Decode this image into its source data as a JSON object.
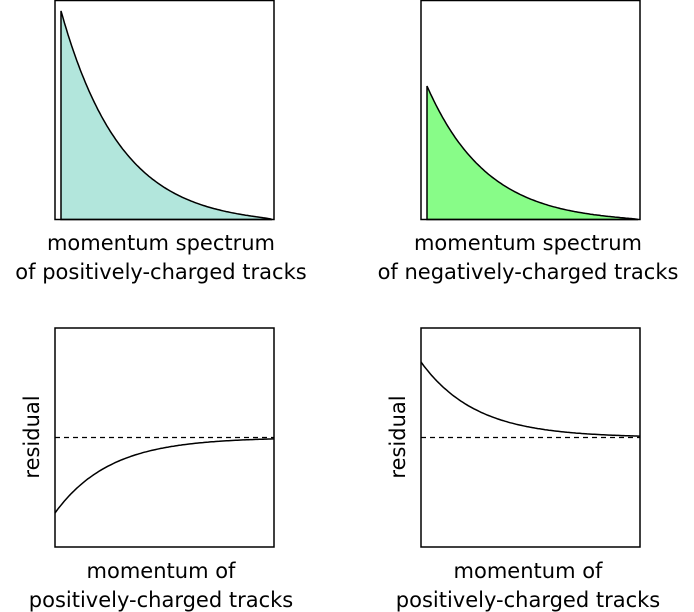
{
  "chart_data": [
    {
      "type": "area",
      "xlabel": [
        "momentum spectrum",
        "of positively-charged tracks"
      ],
      "ylabel": "",
      "fill_color": "#b2e6dc",
      "peak": 1.0,
      "decay": 3.0,
      "x_range": [
        0,
        1
      ],
      "ylim": [
        0,
        1.05
      ],
      "ticks": false,
      "grid": false
    },
    {
      "type": "area",
      "xlabel": [
        "momentum spectrum",
        "of negatively-charged tracks"
      ],
      "ylabel": "",
      "fill_color": "#88fc88",
      "peak": 0.64,
      "decay": 3.0,
      "x_range": [
        0,
        1
      ],
      "ylim": [
        0,
        1.05
      ],
      "ticks": false,
      "grid": false
    },
    {
      "type": "line",
      "xlabel": [
        "momentum of",
        "positively-charged tracks"
      ],
      "ylabel": "residual",
      "start_value": -1.0,
      "decay": 4.0,
      "reference_line": 0,
      "reference_style": "dashed",
      "x_range": [
        0,
        1
      ],
      "ylim": [
        -1.45,
        1.45
      ],
      "ticks": false,
      "grid": false
    },
    {
      "type": "line",
      "xlabel": [
        "momentum of",
        "positively-charged tracks"
      ],
      "ylabel": "residual",
      "start_value": 1.0,
      "decay": 4.0,
      "reference_line": 0,
      "reference_style": "dashed",
      "x_range": [
        0,
        1
      ],
      "ylim": [
        -1.45,
        1.45
      ],
      "ticks": false,
      "grid": false
    }
  ]
}
